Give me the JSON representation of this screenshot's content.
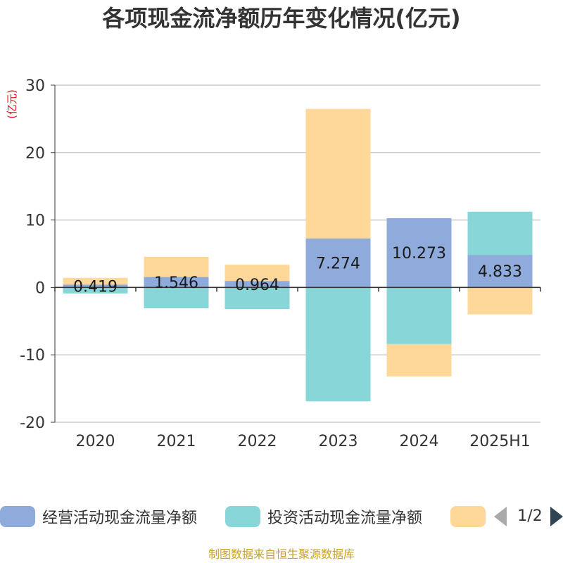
{
  "title": "各项现金流净额历年变化情况(亿元)",
  "source_note": "制图数据来自恒生聚源数据库",
  "legend_pager": {
    "text": "1/2"
  },
  "colors": {
    "operating": "#8eabdb",
    "investing": "#88d6d8",
    "financing": "#fdd898",
    "unit_label": "#e0101a",
    "source_note": "#c9a227",
    "grid": "#cccccc",
    "axis": "#333333"
  },
  "chart_data": {
    "type": "bar",
    "stacked": true,
    "title": "各项现金流净额历年变化情况(亿元)",
    "ylabel": "(亿元)",
    "xlabel": "",
    "ylim": [
      -20,
      30
    ],
    "yticks": [
      30,
      20,
      10,
      0,
      -10,
      -20
    ],
    "grid": true,
    "legend_position": "bottom",
    "categories": [
      "2020",
      "2021",
      "2022",
      "2023",
      "2024",
      "2025H1"
    ],
    "series": [
      {
        "name": "经营活动现金流量净额",
        "color_key": "operating",
        "values": [
          0.419,
          1.546,
          0.964,
          7.274,
          10.273,
          4.833
        ],
        "labels": [
          "0.419",
          "1.546",
          "0.964",
          "7.274",
          "10.273",
          "4.833"
        ]
      },
      {
        "name": "投资活动现金流量净额",
        "color_key": "investing",
        "values": [
          -0.9,
          -3.1,
          -3.2,
          -16.9,
          -8.4,
          6.4
        ]
      },
      {
        "name": "",
        "color_key": "financing",
        "values": [
          1.0,
          3.0,
          2.4,
          19.2,
          -4.8,
          -4.0
        ]
      }
    ]
  }
}
